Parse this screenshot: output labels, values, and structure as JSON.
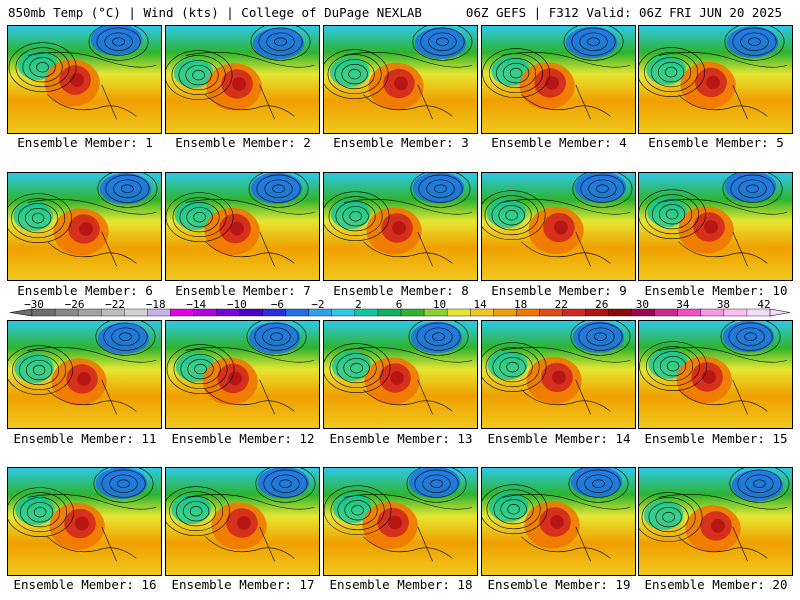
{
  "header": {
    "left": "850mb Temp (°C) | Wind (kts) | College of DuPage NEXLAB",
    "right": "06Z GEFS | F312 Valid: 06Z FRI JUN 20 2025"
  },
  "members": [
    "Ensemble Member: 1",
    "Ensemble Member: 2",
    "Ensemble Member: 3",
    "Ensemble Member: 4",
    "Ensemble Member: 5",
    "Ensemble Member: 6",
    "Ensemble Member: 7",
    "Ensemble Member: 8",
    "Ensemble Member: 9",
    "Ensemble Member: 10",
    "Ensemble Member: 11",
    "Ensemble Member: 12",
    "Ensemble Member: 13",
    "Ensemble Member: 14",
    "Ensemble Member: 15",
    "Ensemble Member: 16",
    "Ensemble Member: 17",
    "Ensemble Member: 18",
    "Ensemble Member: 19",
    "Ensemble Member: 20"
  ],
  "colorbar": {
    "ticks": [
      "−30",
      "−26",
      "−22",
      "−18",
      "−14",
      "−10",
      "−6",
      "−2",
      "2",
      "6",
      "10",
      "14",
      "18",
      "22",
      "26",
      "30",
      "34",
      "38",
      "42"
    ],
    "colors": [
      "#6e6e6e",
      "#8a8a8a",
      "#a3a3a3",
      "#bdbdbd",
      "#d2d2d2",
      "#c8b0e8",
      "#e600e6",
      "#b400dc",
      "#7a00dc",
      "#4b00c8",
      "#2c2ce0",
      "#1f6fe6",
      "#2ea0f0",
      "#2ec8e8",
      "#10c8a0",
      "#10b060",
      "#2eb42e",
      "#8cd22e",
      "#e6e632",
      "#f0c81e",
      "#f0a000",
      "#f07800",
      "#e64b14",
      "#d2281e",
      "#b41414",
      "#8c0a0a",
      "#a00050",
      "#d2288c",
      "#f050c8",
      "#f896e6",
      "#fabef0",
      "#f5dcfa"
    ]
  }
}
